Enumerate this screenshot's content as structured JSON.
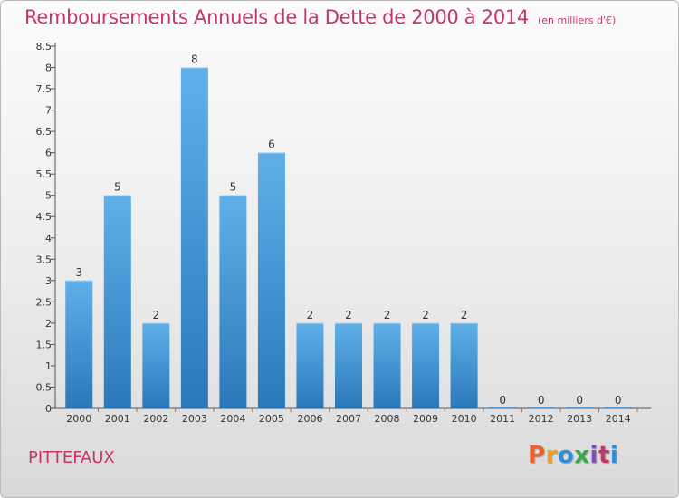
{
  "title": "Remboursements Annuels de la Dette de 2000 à 2014",
  "unit_note": "(en milliers d'€)",
  "commune": "PITTEFAUX",
  "brand": {
    "text": "Proxiti",
    "colors": [
      "#e8602c",
      "#f0a020",
      "#2e8fd8",
      "#3da84a",
      "#7c4fb5",
      "#c4366b",
      "#2e8fd8"
    ]
  },
  "colors": {
    "bar_top": "#5fb0ea",
    "bar_bottom": "#2a78b9",
    "title": "#c4366b"
  },
  "chart_data": {
    "type": "bar",
    "categories": [
      "2000",
      "2001",
      "2002",
      "2003",
      "2004",
      "2005",
      "2006",
      "2007",
      "2008",
      "2009",
      "2010",
      "2011",
      "2012",
      "2013",
      "2014"
    ],
    "values": [
      3,
      5,
      2,
      8,
      5,
      6,
      2,
      2,
      2,
      2,
      2,
      0,
      0,
      0,
      0
    ],
    "value_labels": [
      "3",
      "5",
      "2",
      "8",
      "5",
      "6",
      "2",
      "2",
      "2",
      "2",
      "2",
      "0",
      "0",
      "0",
      "0"
    ],
    "yticks": [
      "0",
      "0.5",
      "1",
      "1.5",
      "2",
      "2.5",
      "3",
      "3.5",
      "4",
      "4.5",
      "5",
      "5.5",
      "6",
      "6.5",
      "7",
      "7.5",
      "8",
      "8.5"
    ],
    "ylim": [
      0,
      8.5
    ],
    "grid": false,
    "legend": "none"
  }
}
